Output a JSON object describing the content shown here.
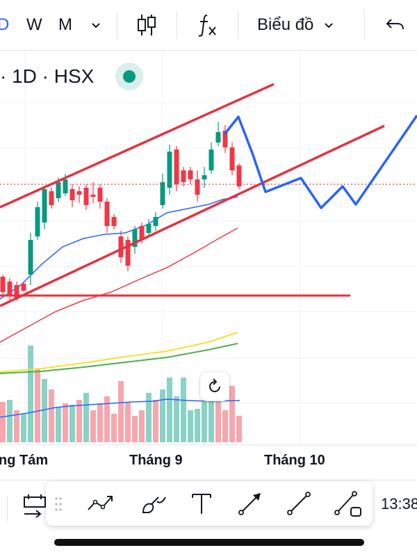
{
  "toolbar": {
    "interval_d": "D",
    "interval_w": "W",
    "interval_m": "M",
    "chart_type_label": "Biểu đồ"
  },
  "symbol": {
    "info": "· 1D · HSX"
  },
  "time_axis": {
    "labels": [
      "ng Tám",
      "Tháng 9",
      "Tháng 10"
    ]
  },
  "bottom": {
    "clock": "13:38"
  },
  "colors": {
    "up": "#089981",
    "down": "#f23645",
    "trend_line": "#e5323e",
    "projection": "#2962ff",
    "ma_blue": "#2962ff",
    "ma_red": "#f23645",
    "ma_yellow": "#f5e12f",
    "ma_green": "#4caf50",
    "volume_up": "#89d2c5",
    "volume_down": "#f7a6ad"
  },
  "icons": {
    "dropdown": "chevron-down-icon",
    "candles": "candlestick-icon",
    "indicators": "function-icon",
    "undo": "undo-icon",
    "reset": "reset-icon"
  }
}
